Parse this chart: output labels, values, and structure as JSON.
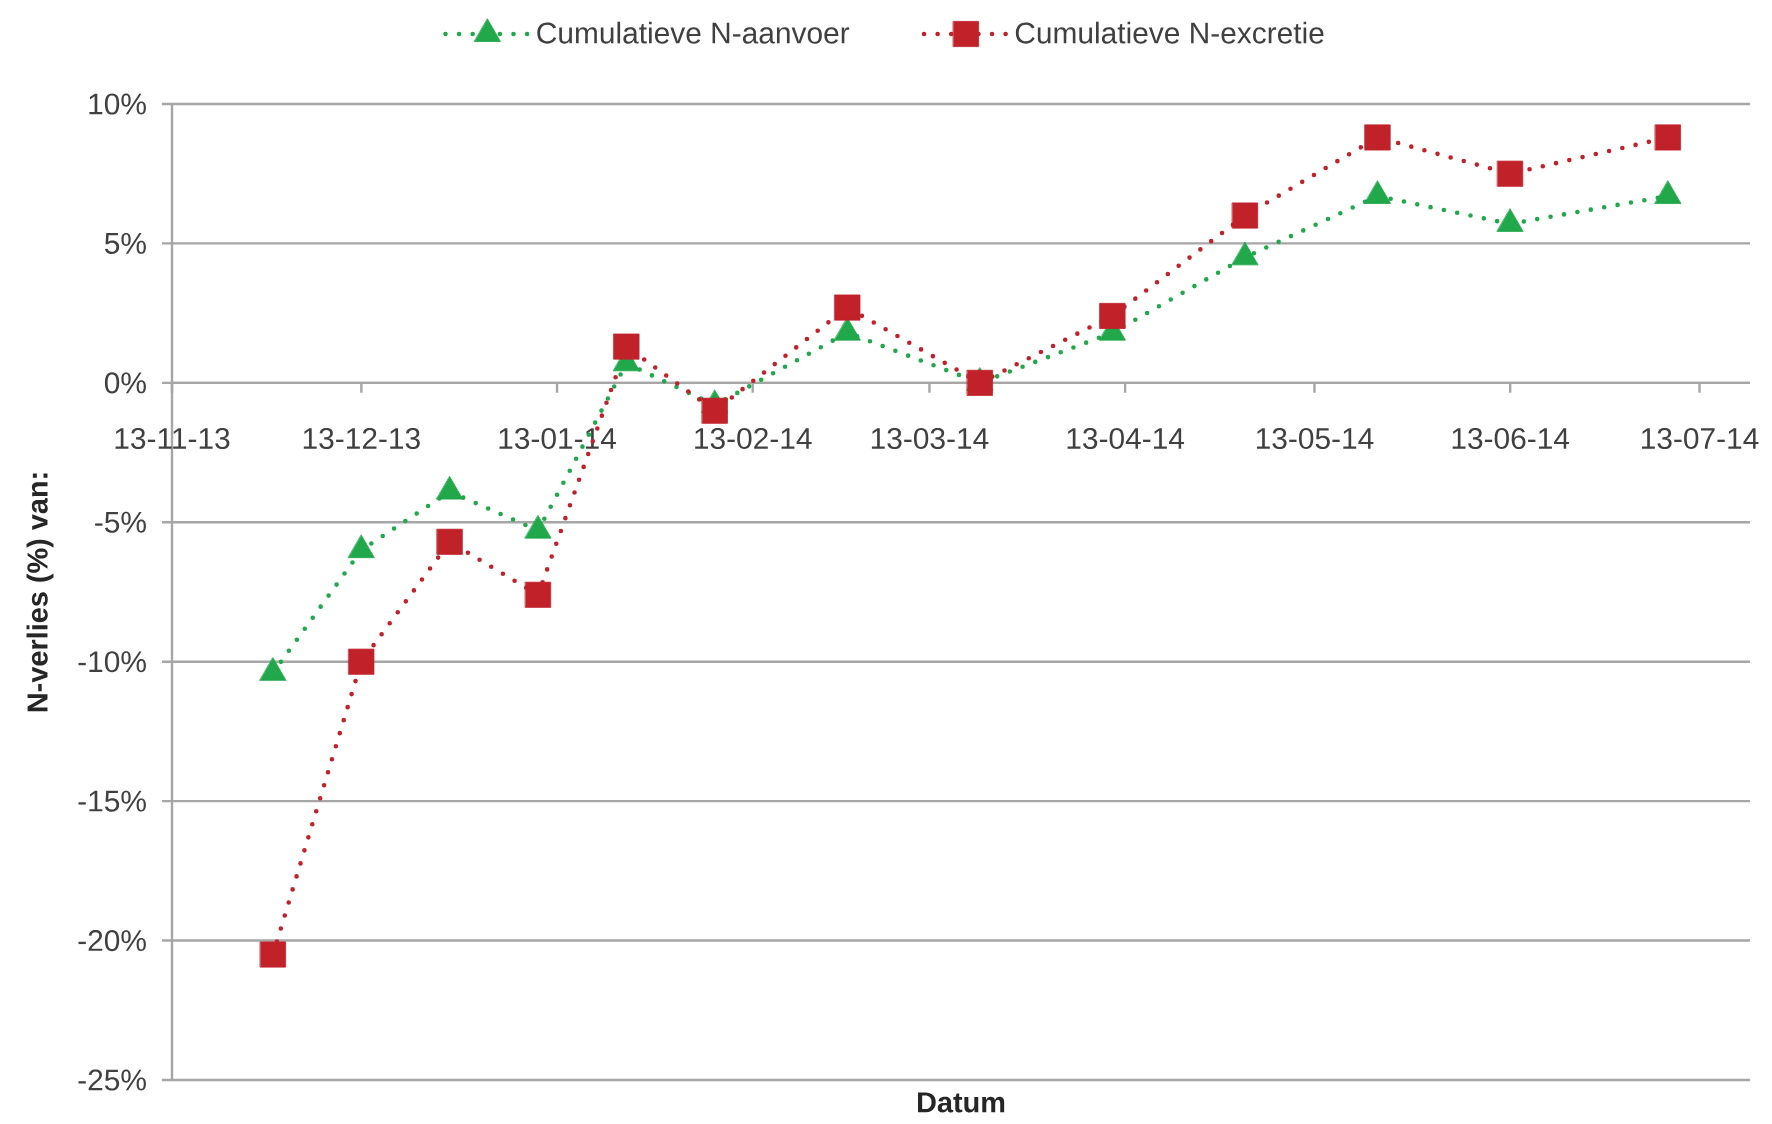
{
  "chart_data": {
    "type": "line",
    "xlabel": "Datum",
    "ylabel": "N-verlies (%) van:",
    "x": [
      "2013-11-29",
      "2013-12-13",
      "2013-12-27",
      "2014-01-10",
      "2014-01-24",
      "2014-02-07",
      "2014-02-28",
      "2014-03-21",
      "2014-04-11",
      "2014-05-02",
      "2014-05-23",
      "2014-06-13",
      "2014-07-08"
    ],
    "series": [
      {
        "name": "Cumulatieve N-aanvoer",
        "color": "#20a84a",
        "marker": "triangle",
        "values": [
          -10.4,
          -6.0,
          -3.9,
          -5.3,
          0.7,
          -0.8,
          1.8,
          0.0,
          1.8,
          4.5,
          6.7,
          5.7,
          6.7
        ]
      },
      {
        "name": "Cumulatieve N-excretie",
        "color": "#c1222a",
        "marker": "square",
        "values": [
          -20.5,
          -10.0,
          -5.7,
          -7.6,
          1.3,
          -1.0,
          2.7,
          0.0,
          2.4,
          6.0,
          8.8,
          7.5,
          8.8
        ]
      }
    ],
    "xlim": [
      "2013-11-13",
      "2014-07-21"
    ],
    "xticks": [
      {
        "value": "2013-11-13",
        "label": "13-11-13"
      },
      {
        "value": "2013-12-13",
        "label": "13-12-13"
      },
      {
        "value": "2014-01-13",
        "label": "13-01-14"
      },
      {
        "value": "2014-02-13",
        "label": "13-02-14"
      },
      {
        "value": "2014-03-13",
        "label": "13-03-14"
      },
      {
        "value": "2014-04-13",
        "label": "13-04-14"
      },
      {
        "value": "2014-05-13",
        "label": "13-05-14"
      },
      {
        "value": "2014-06-13",
        "label": "13-06-14"
      },
      {
        "value": "2014-07-13",
        "label": "13-07-14"
      }
    ],
    "ylim": [
      -25,
      10
    ],
    "yticks": [
      {
        "value": -25,
        "label": "-25%"
      },
      {
        "value": -20,
        "label": "-20%"
      },
      {
        "value": -15,
        "label": "-15%"
      },
      {
        "value": -10,
        "label": "-10%"
      },
      {
        "value": -5,
        "label": "-5%"
      },
      {
        "value": 0,
        "label": "0%"
      },
      {
        "value": 5,
        "label": "5%"
      },
      {
        "value": 10,
        "label": "10%"
      }
    ],
    "grid": "y",
    "legend": "top",
    "line_style": "dotted"
  }
}
